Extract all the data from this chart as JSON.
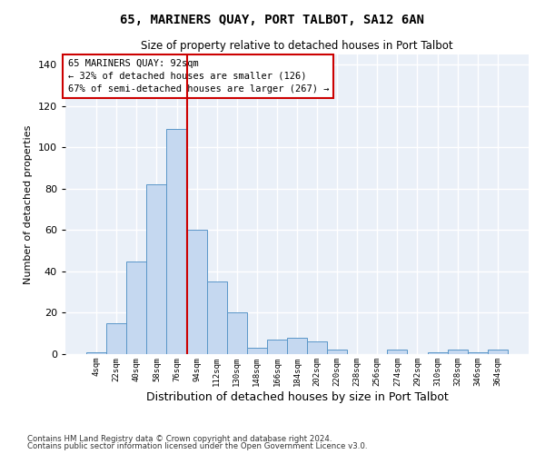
{
  "title": "65, MARINERS QUAY, PORT TALBOT, SA12 6AN",
  "subtitle": "Size of property relative to detached houses in Port Talbot",
  "xlabel": "Distribution of detached houses by size in Port Talbot",
  "ylabel": "Number of detached properties",
  "categories": [
    "4sqm",
    "22sqm",
    "40sqm",
    "58sqm",
    "76sqm",
    "94sqm",
    "112sqm",
    "130sqm",
    "148sqm",
    "166sqm",
    "184sqm",
    "202sqm",
    "220sqm",
    "238sqm",
    "256sqm",
    "274sqm",
    "292sqm",
    "310sqm",
    "328sqm",
    "346sqm",
    "364sqm"
  ],
  "values": [
    1,
    15,
    45,
    82,
    109,
    60,
    35,
    20,
    3,
    7,
    8,
    6,
    2,
    0,
    0,
    2,
    0,
    1,
    2,
    1,
    2
  ],
  "bar_color": "#c5d8f0",
  "bar_edge_color": "#5a96c8",
  "bar_width": 1.0,
  "vline_x": 5.0,
  "vline_color": "#cc0000",
  "annotation_title": "65 MARINERS QUAY: 92sqm",
  "annotation_line1": "← 32% of detached houses are smaller (126)",
  "annotation_line2": "67% of semi-detached houses are larger (267) →",
  "annotation_box_color": "#ffffff",
  "annotation_box_edge": "#cc0000",
  "ylim": [
    0,
    145
  ],
  "yticks": [
    0,
    20,
    40,
    60,
    80,
    100,
    120,
    140
  ],
  "bg_color": "#eaf0f8",
  "grid_color": "#ffffff",
  "fig_bg_color": "#ffffff",
  "footer1": "Contains HM Land Registry data © Crown copyright and database right 2024.",
  "footer2": "Contains public sector information licensed under the Open Government Licence v3.0."
}
